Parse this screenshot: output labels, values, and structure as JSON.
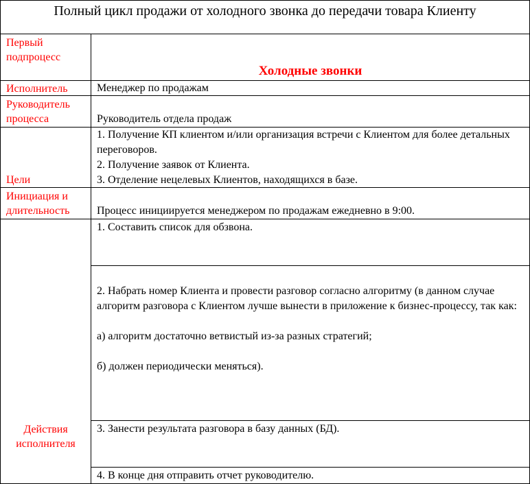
{
  "title": "Полный цикл продажи от холодного звонка до передачи товара Клиенту",
  "rows": {
    "subprocess": {
      "label": "Первый подпроцесс",
      "value": "Холодные звонки"
    },
    "executor": {
      "label": "Исполнитель",
      "value": "Менеджер  по продажам"
    },
    "owner": {
      "label": "Руководитель процесса",
      "value": "Руководитель отдела продаж"
    },
    "goals": {
      "label": "Цели",
      "items": [
        "1. Получение КП клиентом и/или организация встречи с Клиентом для более детальных переговоров.",
        "2. Получение заявок от Клиента.",
        "3. Отделение  нецелевых Клиентов, находящихся в базе."
      ]
    },
    "initiation": {
      "label": "Инициация и длительность",
      "value": "Процесс инициируется  менеджером по продажам ежедневно в 9:00."
    },
    "actions": {
      "label": "Действия исполнителя",
      "steps": [
        {
          "text": "1. Составить список для обзвона."
        },
        {
          "text": "2. Набрать номер Клиента и провести разговор согласно алгоритму (в данном случае алгоритм разговора с Клиентом лучше вынести в приложение к бизнес-процессу,  так как:",
          "a": "а) алгоритм достаточно ветвистый  из-за разных стратегий;",
          "b": "б) должен периодически  меняться)."
        },
        {
          "text": "3. Занести  результата разговора в базу данных (БД)."
        },
        {
          "text": "4. В конце дня отправить отчет руководителю."
        }
      ]
    }
  }
}
